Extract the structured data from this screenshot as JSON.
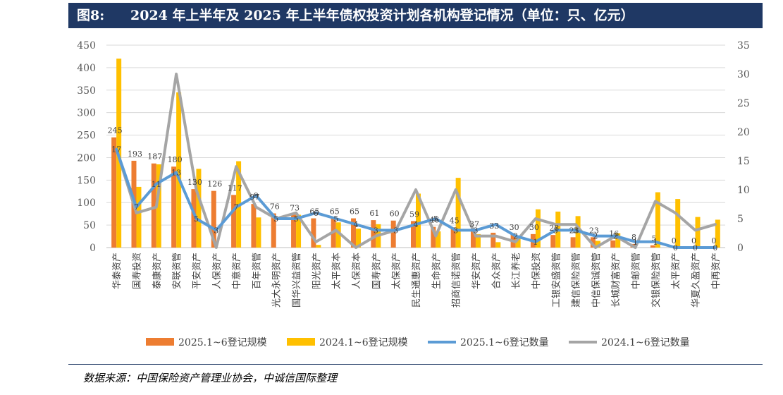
{
  "header": {
    "figure_label": "图8:",
    "title": "2024 年上半年及 2025 年上半年债权投资计划各机构登记情况（单位：只、亿元）"
  },
  "source": "数据来源：中国保险资产管理业协会，中诚信国际整理",
  "colors": {
    "bar_2025": "#ed7d31",
    "bar_2024": "#ffc000",
    "line_2025": "#5b9bd5",
    "line_2024": "#a5a5a5",
    "header_bg": "#1f3864"
  },
  "chart_data": {
    "type": "bar",
    "title": "",
    "categories": [
      "华泰资产",
      "国寿投资",
      "泰康资产",
      "安联资管",
      "平安资产",
      "人保资产",
      "中意资产",
      "百年资管",
      "光大永明资产",
      "国华兴益资管",
      "阳光资产",
      "太平资本",
      "人保资本",
      "国寿资产",
      "太保资产",
      "民生通惠资产",
      "生命资产",
      "招商信诺资管",
      "华安资产",
      "合众资产",
      "长江养老",
      "中保投资",
      "工银安盛资管",
      "建信保险资管",
      "中信保诚资管",
      "长城财富资产",
      "中邮资管",
      "交银保险资管",
      "太平资产",
      "华夏久盈资产",
      "中再资产"
    ],
    "left_axis": {
      "ylim": [
        0,
        450
      ],
      "ticks": [
        0,
        50,
        100,
        150,
        200,
        250,
        300,
        350,
        400,
        450
      ]
    },
    "right_axis": {
      "ylim": [
        0,
        35
      ],
      "ticks": [
        0,
        5,
        10,
        15,
        20,
        25,
        30,
        35
      ]
    },
    "grid": true,
    "legend_position": "bottom",
    "series": [
      {
        "name": "2025.1~6登记规模",
        "type": "bar",
        "axis": "left",
        "color": "#ed7d31",
        "values": [
          245,
          193,
          187,
          180,
          130,
          126,
          117,
          97,
          76,
          73,
          65,
          65,
          65,
          61,
          60,
          59,
          46,
          45,
          37,
          33,
          30,
          30,
          28,
          23,
          23,
          16,
          8,
          5,
          0,
          0,
          0
        ],
        "labels": [
          "245",
          "193",
          "187",
          "180",
          "130",
          "126",
          "117",
          "97",
          "76",
          "73",
          "65",
          "65",
          "65",
          "61",
          "60",
          "59",
          "46",
          "45",
          "37",
          "33",
          "30",
          "30",
          "28",
          "23",
          "23",
          "16",
          "8",
          "5",
          "0",
          "0",
          "0"
        ]
      },
      {
        "name": "2024.1~6登记规模",
        "type": "bar",
        "axis": "left",
        "color": "#ffc000",
        "values": [
          420,
          135,
          185,
          345,
          175,
          0,
          192,
          67,
          0,
          73,
          6,
          56,
          42,
          52,
          0,
          120,
          36,
          155,
          30,
          12,
          20,
          85,
          80,
          70,
          15,
          32,
          0,
          123,
          108,
          68,
          62
        ]
      },
      {
        "name": "2025.1~6登记数量",
        "type": "line",
        "axis": "right",
        "color": "#5b9bd5",
        "values": [
          17,
          7,
          11,
          13,
          5,
          3,
          7,
          9,
          5,
          5,
          6,
          5,
          4,
          3,
          3,
          4,
          5,
          3,
          3,
          4,
          2,
          1,
          3,
          3,
          2,
          2,
          1,
          1,
          0,
          0,
          0
        ],
        "labels": [
          "17",
          "7",
          "11",
          "13",
          "5",
          "3",
          "7",
          "9",
          "5",
          "5",
          "6",
          "5",
          "4",
          "3",
          "3",
          "4",
          "5",
          "3",
          "3",
          "",
          "2",
          "1",
          "3",
          "3",
          "2",
          "2",
          "1",
          "1",
          "0",
          "0",
          "0"
        ]
      },
      {
        "name": "2024.1~6登记数量",
        "type": "line",
        "axis": "right",
        "color": "#a5a5a5",
        "values": [
          17,
          6,
          7,
          30,
          10,
          0,
          14,
          7,
          5,
          6,
          1,
          3,
          0,
          2,
          3,
          10,
          2,
          10,
          2,
          2,
          1,
          5,
          4,
          4,
          0,
          2,
          0,
          8,
          6,
          3,
          4
        ]
      }
    ]
  }
}
